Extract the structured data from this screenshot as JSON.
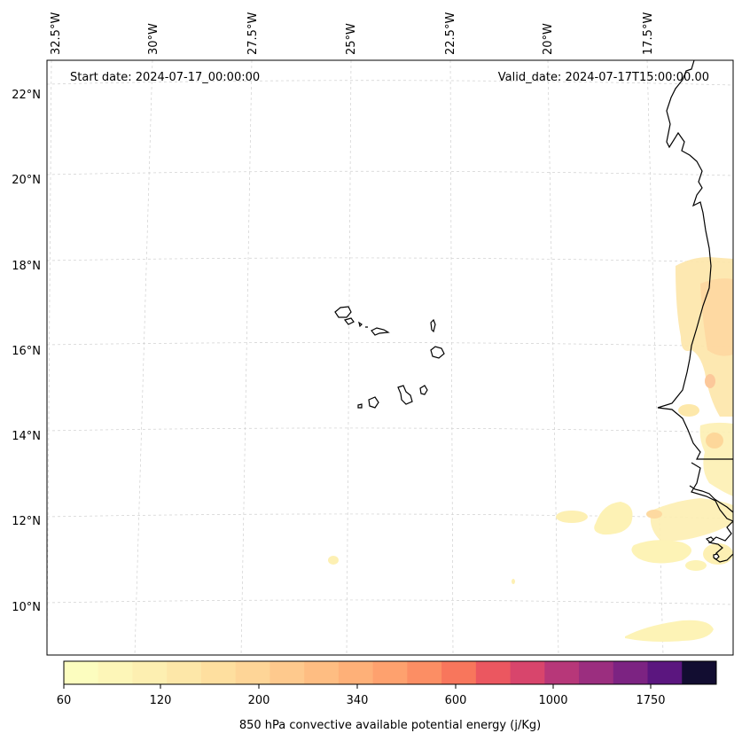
{
  "header": {
    "start_date": "Start date: 2024-07-17_00:00:00",
    "valid_date": "Valid_date: 2024-07-17T15:00:00.00"
  },
  "axes": {
    "lon_labels": [
      "32.5°W",
      "30°W",
      "27.5°W",
      "25°W",
      "22.5°W",
      "20°W",
      "17.5°W"
    ],
    "lat_labels": [
      "22°N",
      "20°N",
      "18°N",
      "16°N",
      "14°N",
      "12°N",
      "10°N"
    ]
  },
  "colorbar": {
    "label": "850 hPa convective available potential energy (j/Kg)",
    "tick_labels": [
      "60",
      "120",
      "200",
      "340",
      "600",
      "1000",
      "1750"
    ],
    "colors": [
      "#fcfdbf",
      "#fdf6b8",
      "#fdefb1",
      "#fde7a8",
      "#fedf9f",
      "#fed597",
      "#fec98d",
      "#febd82",
      "#feb078",
      "#fea16e",
      "#fc8e64",
      "#f8765c",
      "#eb5760",
      "#d8456c",
      "#b73779",
      "#9b2e7f",
      "#7c2382",
      "#5b167f",
      "#120d31"
    ]
  },
  "colors": {
    "cape_light": "#fdf3b6",
    "cape_mid": "#fde2a3",
    "cape_peak": "#fcc39a",
    "grid": "#cfcfcf",
    "coast": "#000000"
  }
}
